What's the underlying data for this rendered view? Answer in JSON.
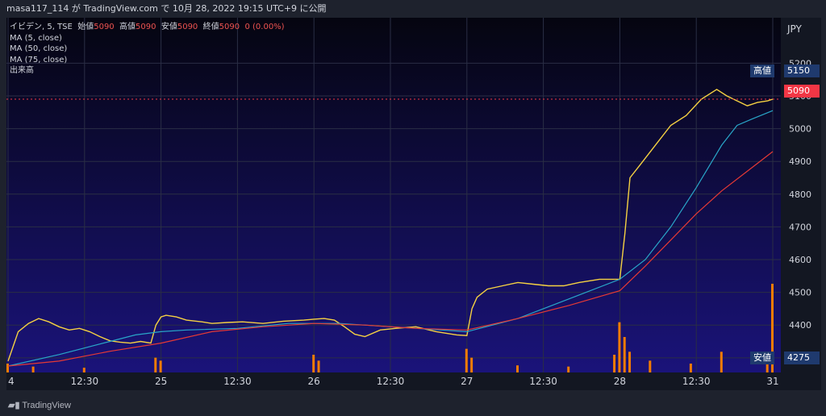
{
  "header": {
    "text": "masa117_114 が TradingView.com で 10月 28, 2022 19:15 UTC+9 に公開"
  },
  "legend": {
    "symbol": "イビデン, 5, TSE",
    "ohlc_label_open": "始値",
    "ohlc_value_open": "5090",
    "ohlc_label_high": "高値",
    "ohlc_value_high": "5090",
    "ohlc_label_low": "安値",
    "ohlc_value_low": "5090",
    "ohlc_label_close": "終値",
    "ohlc_value_close": "5090",
    "change": "0 (0.00%)",
    "ma5": "MA (5, close)",
    "ma50": "MA (50, close)",
    "ma75": "MA (75, close)",
    "volume": "出来高"
  },
  "tags": {
    "high_label": "高値",
    "high_value": "5150",
    "current_value": "5090",
    "low_label": "安値",
    "low_value": "4275",
    "currency": "JPY"
  },
  "footer": {
    "brand": "TradingView"
  },
  "colors": {
    "background": "#0c0a2c",
    "up": "#26a69a",
    "down": "#ef5350",
    "ma5": "#f5d142",
    "ma50": "#29a6c8",
    "ma75": "#e53935",
    "volume": "#f57c00",
    "tag_blue": "#2a4c8c",
    "tag_red": "#f23645"
  },
  "chart_data": {
    "type": "line",
    "title": "",
    "xlabel": "",
    "ylabel": "",
    "ylim": [
      4275,
      5260
    ],
    "y_ticks": [
      4300,
      4400,
      4500,
      4600,
      4700,
      4800,
      4900,
      5000,
      5100,
      5200
    ],
    "x_ticks": [
      "4",
      "12:30",
      "25",
      "12:30",
      "26",
      "12:30",
      "27",
      "12:30",
      "28",
      "12:30",
      "31"
    ],
    "x_tick_positions": [
      0,
      15,
      30,
      45,
      60,
      75,
      90,
      105,
      120,
      135,
      150
    ],
    "grid": true,
    "series": [
      {
        "name": "MA (5, close)",
        "x": [
          0,
          2,
          4,
          6,
          8,
          10,
          12,
          14,
          16,
          18,
          20,
          22,
          24,
          26,
          28,
          29,
          30,
          31,
          33,
          35,
          38,
          40,
          43,
          46,
          50,
          54,
          58,
          60,
          62,
          64,
          66,
          68,
          70,
          73,
          76,
          80,
          84,
          88,
          90,
          91,
          92,
          94,
          97,
          100,
          103,
          106,
          109,
          112,
          116,
          120,
          121,
          122,
          124,
          127,
          130,
          133,
          136,
          139,
          141,
          143,
          145,
          147,
          149,
          150
        ],
        "values": [
          4290,
          4380,
          4405,
          4420,
          4410,
          4395,
          4385,
          4390,
          4380,
          4365,
          4352,
          4348,
          4345,
          4350,
          4345,
          4400,
          4425,
          4430,
          4425,
          4415,
          4410,
          4405,
          4408,
          4410,
          4405,
          4412,
          4415,
          4418,
          4420,
          4415,
          4395,
          4372,
          4365,
          4385,
          4390,
          4395,
          4380,
          4370,
          4368,
          4450,
          4485,
          4510,
          4520,
          4530,
          4525,
          4520,
          4520,
          4530,
          4540,
          4540,
          4680,
          4850,
          4890,
          4950,
          5010,
          5040,
          5090,
          5120,
          5100,
          5085,
          5070,
          5080,
          5085,
          5090
        ]
      },
      {
        "name": "MA (50, close)",
        "x": [
          0,
          10,
          20,
          25,
          30,
          35,
          45,
          55,
          65,
          75,
          85,
          90,
          100,
          110,
          120,
          125,
          130,
          135,
          140,
          143,
          146,
          150
        ],
        "values": [
          4275,
          4310,
          4350,
          4370,
          4380,
          4385,
          4390,
          4405,
          4405,
          4395,
          4385,
          4380,
          4420,
          4480,
          4540,
          4600,
          4700,
          4820,
          4950,
          5010,
          5030,
          5055
        ]
      },
      {
        "name": "MA (75, close)",
        "x": [
          0,
          10,
          20,
          30,
          40,
          50,
          60,
          70,
          80,
          90,
          100,
          110,
          120,
          125,
          130,
          135,
          140,
          145,
          150
        ],
        "values": [
          4275,
          4290,
          4320,
          4345,
          4380,
          4395,
          4405,
          4400,
          4390,
          4385,
          4420,
          4460,
          4505,
          4580,
          4660,
          4740,
          4810,
          4870,
          4930
        ]
      }
    ],
    "volume": {
      "x": [
        0,
        5,
        15,
        29,
        30,
        60,
        61,
        90,
        91,
        100,
        110,
        119,
        120,
        121,
        122,
        126,
        134,
        140,
        149,
        150
      ],
      "values": [
        1.5,
        1.0,
        0.8,
        2.5,
        2.0,
        3.0,
        2.0,
        4.0,
        2.5,
        1.2,
        1.0,
        3.0,
        8.5,
        6.0,
        3.5,
        2.0,
        1.5,
        3.5,
        2.0,
        15.0
      ]
    }
  }
}
